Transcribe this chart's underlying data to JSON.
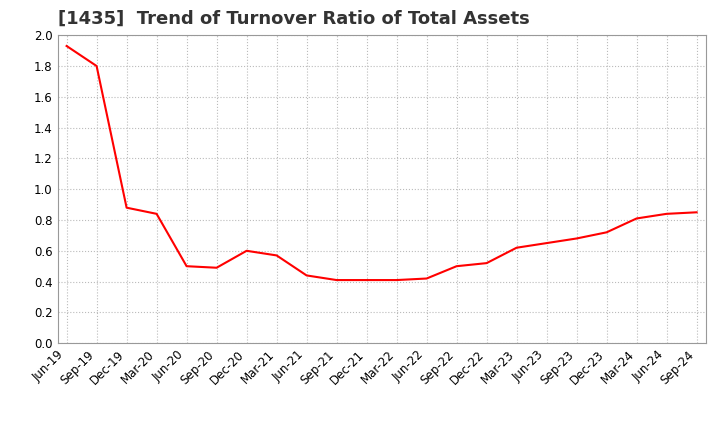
{
  "title": "[1435]  Trend of Turnover Ratio of Total Assets",
  "x_labels": [
    "Jun-19",
    "Sep-19",
    "Dec-19",
    "Mar-20",
    "Jun-20",
    "Sep-20",
    "Dec-20",
    "Mar-21",
    "Jun-21",
    "Sep-21",
    "Dec-21",
    "Mar-22",
    "Jun-22",
    "Sep-22",
    "Dec-22",
    "Mar-23",
    "Jun-23",
    "Sep-23",
    "Dec-23",
    "Mar-24",
    "Jun-24",
    "Sep-24"
  ],
  "y_values": [
    1.93,
    1.8,
    0.88,
    0.84,
    0.5,
    0.49,
    0.6,
    0.57,
    0.44,
    0.41,
    0.41,
    0.41,
    0.42,
    0.5,
    0.52,
    0.62,
    0.65,
    0.68,
    0.72,
    0.81,
    0.84,
    0.85
  ],
  "line_color": "#FF0000",
  "background_color": "#FFFFFF",
  "grid_color": "#BBBBBB",
  "ylim": [
    0.0,
    2.0
  ],
  "yticks": [
    0.0,
    0.2,
    0.4,
    0.6,
    0.8,
    1.0,
    1.2,
    1.4,
    1.6,
    1.8,
    2.0
  ],
  "title_fontsize": 13,
  "tick_fontsize": 8.5,
  "line_width": 1.5
}
